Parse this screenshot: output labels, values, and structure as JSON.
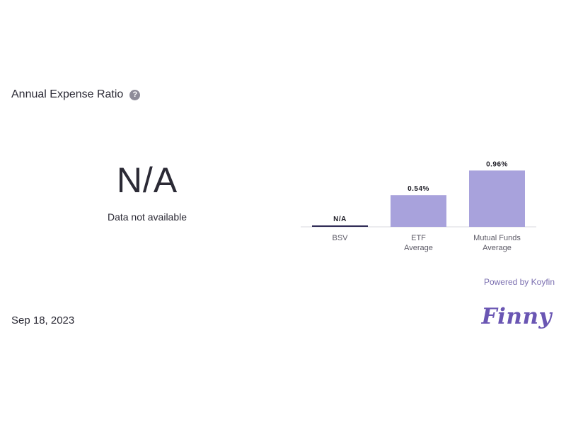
{
  "header": {
    "title": "Annual Expense Ratio",
    "help_icon": "question-circle-icon"
  },
  "summary": {
    "value": "N/A",
    "subtitle": "Data not available"
  },
  "chart_data": {
    "type": "bar",
    "categories": [
      [
        "BSV"
      ],
      [
        "ETF",
        "Average"
      ],
      [
        "Mutual Funds",
        "Average"
      ]
    ],
    "values": [
      null,
      0.54,
      0.96
    ],
    "value_labels": [
      "N/A",
      "0.54%",
      "0.96%"
    ],
    "ylim": [
      0,
      1.0
    ],
    "grid": false,
    "colors": {
      "bar": "#a8a2dc",
      "missing_bar": "#2e2a55",
      "axis": "#d9d9df",
      "label": "#5c5a66"
    }
  },
  "footer": {
    "powered_by": "Powered by Koyfin",
    "date": "Sep 18, 2023",
    "logo_text": "Finny",
    "logo_color": "#6a56b3"
  }
}
